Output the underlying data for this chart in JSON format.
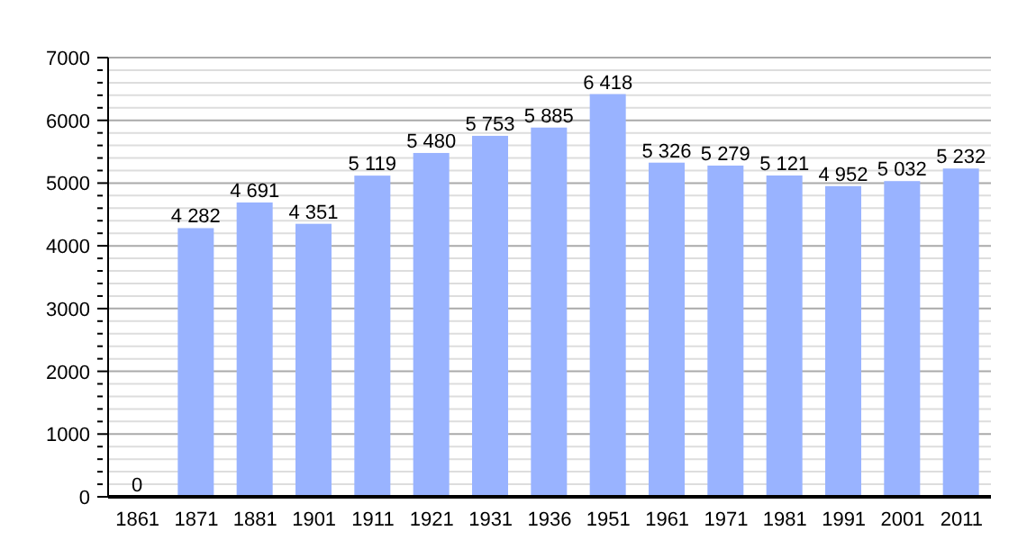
{
  "chart_data": {
    "type": "bar",
    "categories": [
      "1861",
      "1871",
      "1881",
      "1901",
      "1911",
      "1921",
      "1931",
      "1936",
      "1951",
      "1961",
      "1971",
      "1981",
      "1991",
      "2001",
      "2011"
    ],
    "values": [
      0,
      4282,
      4691,
      4351,
      5119,
      5480,
      5753,
      5885,
      6418,
      5326,
      5279,
      5121,
      4952,
      5032,
      5232
    ],
    "value_labels": [
      "0",
      "4 282",
      "4 691",
      "4 351",
      "5 119",
      "5 480",
      "5 753",
      "5 885",
      "6 418",
      "5 326",
      "5 279",
      "5 121",
      "4 952",
      "5 032",
      "5 232"
    ],
    "color": "#99b3ff",
    "ylim": [
      0,
      7000
    ],
    "yticks": [
      0,
      {
        "value": 200,
        "label": null
      },
      {
        "value": 400,
        "label": null
      },
      {
        "value": 600,
        "label": null
      },
      {
        "value": 800,
        "label": null
      },
      1000,
      {
        "value": 1200,
        "label": null
      },
      {
        "value": 1400,
        "label": null
      },
      {
        "value": 1600,
        "label": null
      },
      {
        "value": 1800,
        "label": null
      },
      2000,
      {
        "value": 2200,
        "label": null
      },
      {
        "value": 2400,
        "label": null
      },
      {
        "value": 2600,
        "label": null
      },
      {
        "value": 2800,
        "label": null
      },
      3000,
      {
        "value": 3200,
        "label": null
      },
      {
        "value": 3400,
        "label": null
      },
      {
        "value": 3600,
        "label": null
      },
      {
        "value": 3800,
        "label": null
      },
      4000,
      {
        "value": 4200,
        "label": null
      },
      {
        "value": 4400,
        "label": null
      },
      {
        "value": 4600,
        "label": null
      },
      {
        "value": 4800,
        "label": null
      },
      5000,
      {
        "value": 5200,
        "label": null
      },
      {
        "value": 5400,
        "label": null
      },
      {
        "value": 5600,
        "label": null
      },
      {
        "value": 5800,
        "label": null
      },
      6000,
      {
        "value": 6200,
        "label": null
      },
      {
        "value": 6400,
        "label": null
      },
      {
        "value": 6600,
        "label": null
      },
      {
        "value": 6800,
        "label": null
      },
      7000
    ],
    "grid": "y"
  }
}
